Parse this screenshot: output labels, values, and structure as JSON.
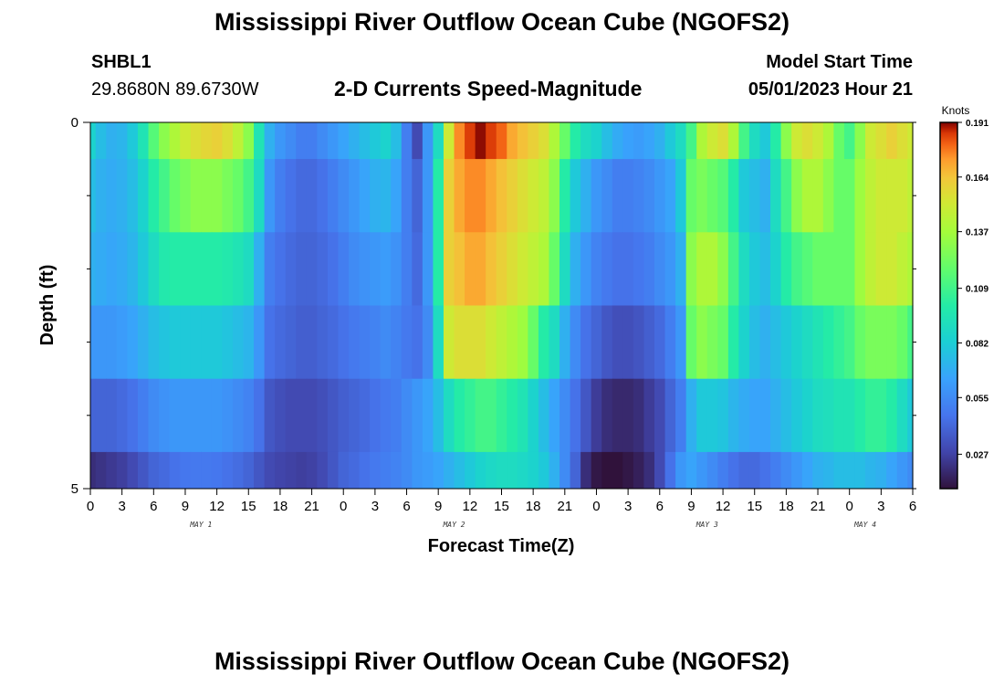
{
  "page": {
    "title": "Mississippi River Outflow Ocean Cube (NGOFS2)",
    "bottom_title": "Mississippi River Outflow Ocean Cube (NGOFS2)",
    "station_id": "SHBL1",
    "coords": "29.8680N  89.6730W",
    "subtitle": "2-D Currents Speed-Magnitude",
    "model_start_label": "Model Start Time",
    "model_start_value": "05/01/2023 Hour 21"
  },
  "chart_data": {
    "type": "heatmap",
    "title": "2-D Currents Speed-Magnitude",
    "xlabel": "Forecast Time(Z)",
    "ylabel": "Depth (ft)",
    "ylim": [
      0,
      5
    ],
    "yticks": [
      "0",
      "5"
    ],
    "xticks": [
      "0",
      "3",
      "6",
      "9",
      "12",
      "15",
      "18",
      "21",
      "0",
      "3",
      "6",
      "9",
      "12",
      "15",
      "18",
      "21",
      "0",
      "3",
      "6",
      "9",
      "12",
      "15",
      "18",
      "21",
      "0",
      "3",
      "6"
    ],
    "day_labels": [
      {
        "label": "MAY 1",
        "hour": 10.5
      },
      {
        "label": "MAY 2",
        "hour": 34.5
      },
      {
        "label": "MAY 3",
        "hour": 58.5
      },
      {
        "label": "MAY 4",
        "hour": 73.5
      }
    ],
    "colorbar": {
      "unit": "Knots",
      "min": 0.01,
      "max": 0.191,
      "ticks": [
        "0.191",
        "0.164",
        "0.137",
        "0.109",
        "0.082",
        "0.055",
        "0.027"
      ]
    },
    "hours": [
      0,
      1,
      2,
      3,
      4,
      5,
      6,
      7,
      8,
      9,
      10,
      11,
      12,
      13,
      14,
      15,
      16,
      17,
      18,
      19,
      20,
      21,
      22,
      23,
      24,
      25,
      26,
      27,
      28,
      29,
      30,
      31,
      32,
      33,
      34,
      35,
      36,
      37,
      38,
      39,
      40,
      41,
      42,
      43,
      44,
      45,
      46,
      47,
      48,
      49,
      50,
      51,
      52,
      53,
      54,
      55,
      56,
      57,
      58,
      59,
      60,
      61,
      62,
      63,
      64,
      65,
      66,
      67,
      68,
      69,
      70,
      71,
      72,
      73,
      74,
      75,
      76,
      77,
      78
    ],
    "depth_layers": [
      "0-0.5",
      "0.5-1.5",
      "1.5-2.5",
      "2.5-3.5",
      "3.5-4.5",
      "4.5-5"
    ],
    "values": [
      [
        0.085,
        0.075,
        0.07,
        0.072,
        0.08,
        0.095,
        0.115,
        0.13,
        0.14,
        0.15,
        0.155,
        0.158,
        0.16,
        0.155,
        0.145,
        0.13,
        0.095,
        0.07,
        0.06,
        0.055,
        0.05,
        0.05,
        0.055,
        0.06,
        0.065,
        0.07,
        0.075,
        0.08,
        0.085,
        0.075,
        0.05,
        0.03,
        0.06,
        0.09,
        0.15,
        0.175,
        0.185,
        0.19,
        0.185,
        0.18,
        0.17,
        0.165,
        0.16,
        0.155,
        0.14,
        0.12,
        0.1,
        0.09,
        0.085,
        0.075,
        0.068,
        0.064,
        0.062,
        0.065,
        0.07,
        0.08,
        0.09,
        0.11,
        0.14,
        0.15,
        0.155,
        0.14,
        0.11,
        0.09,
        0.08,
        0.1,
        0.13,
        0.15,
        0.155,
        0.15,
        0.14,
        0.12,
        0.11,
        0.13,
        0.15,
        0.155,
        0.16,
        0.155,
        0.15
      ],
      [
        0.075,
        0.07,
        0.068,
        0.07,
        0.075,
        0.085,
        0.1,
        0.11,
        0.12,
        0.125,
        0.13,
        0.13,
        0.13,
        0.125,
        0.12,
        0.11,
        0.09,
        0.06,
        0.05,
        0.045,
        0.042,
        0.042,
        0.045,
        0.05,
        0.055,
        0.06,
        0.065,
        0.07,
        0.072,
        0.065,
        0.05,
        0.04,
        0.06,
        0.1,
        0.16,
        0.17,
        0.175,
        0.175,
        0.17,
        0.165,
        0.16,
        0.155,
        0.15,
        0.145,
        0.13,
        0.1,
        0.08,
        0.07,
        0.06,
        0.055,
        0.05,
        0.05,
        0.052,
        0.055,
        0.06,
        0.065,
        0.08,
        0.12,
        0.125,
        0.12,
        0.115,
        0.1,
        0.08,
        0.075,
        0.07,
        0.09,
        0.11,
        0.13,
        0.14,
        0.14,
        0.13,
        0.12,
        0.12,
        0.135,
        0.145,
        0.15,
        0.15,
        0.15,
        0.145
      ],
      [
        0.07,
        0.068,
        0.066,
        0.068,
        0.072,
        0.08,
        0.09,
        0.098,
        0.1,
        0.1,
        0.1,
        0.1,
        0.1,
        0.098,
        0.095,
        0.09,
        0.07,
        0.05,
        0.045,
        0.042,
        0.04,
        0.04,
        0.042,
        0.045,
        0.05,
        0.055,
        0.058,
        0.06,
        0.062,
        0.058,
        0.05,
        0.042,
        0.06,
        0.1,
        0.16,
        0.165,
        0.17,
        0.17,
        0.165,
        0.16,
        0.155,
        0.15,
        0.145,
        0.14,
        0.12,
        0.09,
        0.07,
        0.06,
        0.052,
        0.048,
        0.045,
        0.045,
        0.047,
        0.05,
        0.055,
        0.06,
        0.07,
        0.13,
        0.14,
        0.14,
        0.13,
        0.11,
        0.09,
        0.08,
        0.075,
        0.085,
        0.1,
        0.11,
        0.115,
        0.12,
        0.12,
        0.12,
        0.12,
        0.135,
        0.145,
        0.15,
        0.15,
        0.145,
        0.14
      ],
      [
        0.06,
        0.06,
        0.06,
        0.062,
        0.065,
        0.07,
        0.075,
        0.078,
        0.08,
        0.08,
        0.08,
        0.08,
        0.08,
        0.078,
        0.075,
        0.072,
        0.06,
        0.045,
        0.042,
        0.04,
        0.038,
        0.038,
        0.04,
        0.042,
        0.045,
        0.048,
        0.05,
        0.052,
        0.055,
        0.052,
        0.048,
        0.045,
        0.055,
        0.09,
        0.15,
        0.155,
        0.155,
        0.155,
        0.15,
        0.145,
        0.14,
        0.135,
        0.12,
        0.1,
        0.09,
        0.07,
        0.055,
        0.045,
        0.04,
        0.035,
        0.032,
        0.032,
        0.034,
        0.038,
        0.042,
        0.05,
        0.06,
        0.12,
        0.13,
        0.125,
        0.12,
        0.1,
        0.085,
        0.075,
        0.07,
        0.075,
        0.08,
        0.085,
        0.09,
        0.095,
        0.1,
        0.105,
        0.11,
        0.12,
        0.125,
        0.125,
        0.125,
        0.12,
        0.11
      ],
      [
        0.04,
        0.04,
        0.04,
        0.042,
        0.045,
        0.05,
        0.055,
        0.058,
        0.06,
        0.06,
        0.06,
        0.06,
        0.06,
        0.058,
        0.055,
        0.052,
        0.045,
        0.035,
        0.032,
        0.03,
        0.03,
        0.03,
        0.032,
        0.035,
        0.038,
        0.04,
        0.042,
        0.045,
        0.048,
        0.05,
        0.055,
        0.06,
        0.065,
        0.075,
        0.09,
        0.1,
        0.105,
        0.11,
        0.11,
        0.105,
        0.1,
        0.095,
        0.085,
        0.075,
        0.065,
        0.055,
        0.045,
        0.035,
        0.025,
        0.02,
        0.018,
        0.018,
        0.02,
        0.025,
        0.03,
        0.04,
        0.05,
        0.07,
        0.08,
        0.08,
        0.078,
        0.072,
        0.068,
        0.065,
        0.065,
        0.07,
        0.075,
        0.08,
        0.085,
        0.09,
        0.092,
        0.095,
        0.095,
        0.1,
        0.105,
        0.105,
        0.1,
        0.09,
        0.08
      ],
      [
        0.02,
        0.022,
        0.024,
        0.026,
        0.03,
        0.035,
        0.04,
        0.042,
        0.045,
        0.047,
        0.048,
        0.048,
        0.047,
        0.045,
        0.043,
        0.04,
        0.035,
        0.03,
        0.028,
        0.027,
        0.026,
        0.027,
        0.03,
        0.035,
        0.04,
        0.042,
        0.045,
        0.048,
        0.05,
        0.052,
        0.055,
        0.06,
        0.062,
        0.065,
        0.07,
        0.075,
        0.08,
        0.085,
        0.088,
        0.09,
        0.09,
        0.088,
        0.085,
        0.08,
        0.07,
        0.055,
        0.04,
        0.02,
        0.012,
        0.01,
        0.01,
        0.012,
        0.015,
        0.02,
        0.03,
        0.045,
        0.06,
        0.065,
        0.06,
        0.055,
        0.05,
        0.045,
        0.042,
        0.042,
        0.045,
        0.05,
        0.055,
        0.06,
        0.065,
        0.07,
        0.072,
        0.075,
        0.075,
        0.075,
        0.072,
        0.07,
        0.065,
        0.06,
        0.055
      ]
    ]
  }
}
